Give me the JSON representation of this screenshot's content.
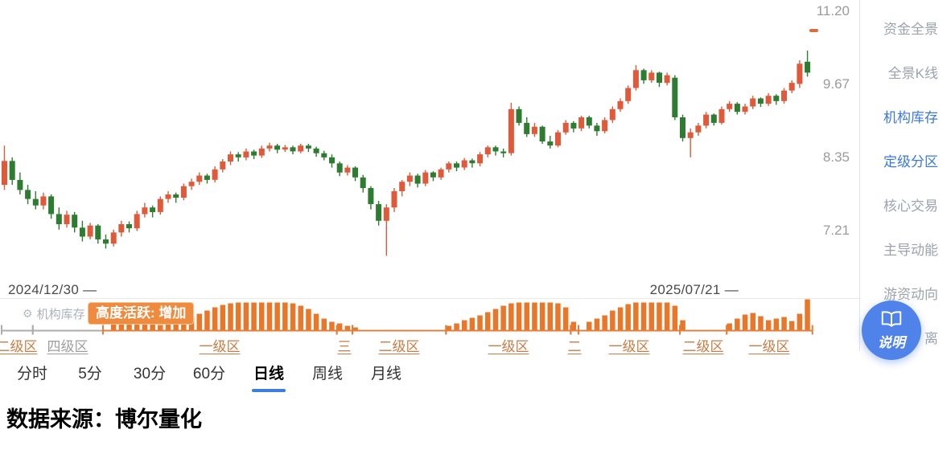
{
  "colors": {
    "up": "#df5a3a",
    "down": "#2e7c31",
    "inventory_bar": "#e8772a",
    "accent_blue": "#3d7ce0",
    "sidebar_active": "#3b78dc",
    "zone_orange_text": "#c97c45",
    "zone_orange_line": "#e0803f",
    "zone_gray_text": "#9e9e9e",
    "zone_gray_line": "#adadad",
    "tooltip_bg": "#ee8b3e",
    "help_button": "#4f83ea"
  },
  "date_range": {
    "start": "2024/12/30 —",
    "end": "2025/07/21 —"
  },
  "inventory_panel": {
    "label": "机构库存",
    "gear_icon": "⚙",
    "tooltip": "高度活跃: 增加"
  },
  "tabs": {
    "items": [
      "分时",
      "5分",
      "30分",
      "60分",
      "日线",
      "周线",
      "月线"
    ],
    "active_index": 4
  },
  "sidebar": {
    "items": [
      {
        "label": "资金全景",
        "active": false
      },
      {
        "label": "全景K线",
        "active": false
      },
      {
        "label": "机构库存",
        "active": true
      },
      {
        "label": "定级分区",
        "active": true
      },
      {
        "label": "核心交易",
        "active": false
      },
      {
        "label": "主导动能",
        "active": false
      },
      {
        "label": "游资动向",
        "active": false
      },
      {
        "label": "离",
        "active": false
      }
    ]
  },
  "help_button": {
    "label": "说明"
  },
  "footer": {
    "source": "数据来源：博尔量化"
  },
  "chart_data": {
    "type": "candlestick",
    "scale": "log",
    "x_range": {
      "start_label": "2024/12/30",
      "end_label": "2025/07/21"
    },
    "y_axis_ticks": [
      "11.20",
      "9.67",
      "8.35",
      "7.21"
    ],
    "grid": false,
    "candles": [
      [
        7.9,
        8.55,
        7.82,
        8.29
      ],
      [
        8.29,
        8.35,
        7.9,
        7.98
      ],
      [
        7.98,
        8.1,
        7.75,
        7.82
      ],
      [
        7.82,
        7.9,
        7.6,
        7.68
      ],
      [
        7.68,
        7.8,
        7.52,
        7.58
      ],
      [
        7.58,
        7.78,
        7.52,
        7.72
      ],
      [
        7.72,
        7.75,
        7.38,
        7.45
      ],
      [
        7.45,
        7.55,
        7.22,
        7.3
      ],
      [
        7.3,
        7.5,
        7.25,
        7.44
      ],
      [
        7.44,
        7.48,
        7.18,
        7.25
      ],
      [
        7.25,
        7.35,
        7.05,
        7.12
      ],
      [
        7.12,
        7.32,
        7.08,
        7.28
      ],
      [
        7.28,
        7.3,
        7.02,
        7.08
      ],
      [
        7.08,
        7.15,
        6.95,
        7.02
      ],
      [
        7.02,
        7.22,
        6.98,
        7.18
      ],
      [
        7.18,
        7.35,
        7.12,
        7.3
      ],
      [
        7.3,
        7.34,
        7.18,
        7.24
      ],
      [
        7.24,
        7.5,
        7.2,
        7.45
      ],
      [
        7.45,
        7.62,
        7.4,
        7.55
      ],
      [
        7.55,
        7.58,
        7.4,
        7.48
      ],
      [
        7.48,
        7.72,
        7.44,
        7.68
      ],
      [
        7.68,
        7.8,
        7.62,
        7.75
      ],
      [
        7.75,
        7.78,
        7.62,
        7.7
      ],
      [
        7.7,
        7.92,
        7.66,
        7.88
      ],
      [
        7.88,
        8.0,
        7.82,
        7.95
      ],
      [
        7.95,
        8.1,
        7.9,
        8.05
      ],
      [
        8.05,
        8.08,
        7.92,
        7.98
      ],
      [
        7.98,
        8.2,
        7.94,
        8.15
      ],
      [
        8.15,
        8.32,
        8.1,
        8.28
      ],
      [
        8.28,
        8.45,
        8.22,
        8.4
      ],
      [
        8.4,
        8.44,
        8.28,
        8.35
      ],
      [
        8.35,
        8.5,
        8.3,
        8.45
      ],
      [
        8.45,
        8.48,
        8.32,
        8.38
      ],
      [
        8.38,
        8.55,
        8.34,
        8.5
      ],
      [
        8.5,
        8.6,
        8.45,
        8.55
      ],
      [
        8.55,
        8.58,
        8.42,
        8.48
      ],
      [
        8.48,
        8.56,
        8.44,
        8.52
      ],
      [
        8.52,
        8.55,
        8.4,
        8.45
      ],
      [
        8.45,
        8.58,
        8.42,
        8.55
      ],
      [
        8.55,
        8.58,
        8.44,
        8.5
      ],
      [
        8.5,
        8.53,
        8.36,
        8.42
      ],
      [
        8.42,
        8.46,
        8.3,
        8.35
      ],
      [
        8.35,
        8.4,
        8.18,
        8.25
      ],
      [
        8.25,
        8.28,
        8.04,
        8.1
      ],
      [
        8.1,
        8.22,
        8.05,
        8.18
      ],
      [
        8.18,
        8.2,
        7.96,
        8.02
      ],
      [
        8.02,
        8.06,
        7.78,
        7.85
      ],
      [
        7.85,
        7.88,
        7.52,
        7.6
      ],
      [
        7.6,
        7.65,
        7.28,
        7.35
      ],
      [
        7.35,
        7.6,
        6.85,
        7.55
      ],
      [
        7.55,
        7.85,
        7.48,
        7.8
      ],
      [
        7.8,
        7.98,
        7.72,
        7.95
      ],
      [
        7.95,
        8.1,
        7.88,
        8.05
      ],
      [
        8.05,
        8.08,
        7.86,
        7.92
      ],
      [
        7.92,
        8.14,
        7.88,
        8.1
      ],
      [
        8.1,
        8.12,
        7.96,
        8.02
      ],
      [
        8.02,
        8.18,
        7.98,
        8.15
      ],
      [
        8.15,
        8.28,
        8.1,
        8.25
      ],
      [
        8.25,
        8.28,
        8.12,
        8.18
      ],
      [
        8.18,
        8.34,
        8.14,
        8.3
      ],
      [
        8.3,
        8.33,
        8.18,
        8.25
      ],
      [
        8.25,
        8.44,
        8.2,
        8.4
      ],
      [
        8.4,
        8.55,
        8.35,
        8.52
      ],
      [
        8.52,
        8.55,
        8.38,
        8.45
      ],
      [
        8.45,
        8.5,
        8.35,
        8.42
      ],
      [
        8.42,
        9.32,
        8.38,
        9.2
      ],
      [
        9.2,
        9.25,
        8.9,
        8.95
      ],
      [
        8.95,
        9.05,
        8.7,
        8.75
      ],
      [
        8.75,
        8.95,
        8.7,
        8.88
      ],
      [
        8.88,
        8.9,
        8.58,
        8.62
      ],
      [
        8.62,
        8.72,
        8.5,
        8.55
      ],
      [
        8.55,
        8.82,
        8.52,
        8.78
      ],
      [
        8.78,
        9.0,
        8.74,
        8.95
      ],
      [
        8.95,
        8.98,
        8.78,
        8.85
      ],
      [
        8.85,
        9.08,
        8.8,
        9.05
      ],
      [
        9.05,
        9.08,
        8.85,
        8.9
      ],
      [
        8.9,
        8.95,
        8.72,
        8.8
      ],
      [
        8.8,
        9.05,
        8.76,
        9.0
      ],
      [
        9.0,
        9.25,
        8.95,
        9.2
      ],
      [
        9.2,
        9.4,
        9.15,
        9.35
      ],
      [
        9.35,
        9.65,
        9.3,
        9.6
      ],
      [
        9.6,
        10.05,
        9.55,
        9.95
      ],
      [
        9.95,
        9.98,
        9.68,
        9.75
      ],
      [
        9.75,
        9.95,
        9.7,
        9.9
      ],
      [
        9.9,
        9.92,
        9.62,
        9.7
      ],
      [
        9.7,
        9.9,
        9.65,
        9.85
      ],
      [
        9.8,
        9.85,
        9.0,
        9.05
      ],
      [
        9.05,
        9.1,
        8.62,
        8.68
      ],
      [
        8.68,
        8.85,
        8.35,
        8.78
      ],
      [
        8.78,
        8.95,
        8.72,
        8.9
      ],
      [
        8.9,
        9.15,
        8.85,
        9.1
      ],
      [
        9.1,
        9.12,
        8.9,
        8.95
      ],
      [
        8.95,
        9.25,
        8.92,
        9.2
      ],
      [
        9.2,
        9.35,
        9.15,
        9.3
      ],
      [
        9.3,
        9.33,
        9.1,
        9.15
      ],
      [
        9.15,
        9.3,
        9.1,
        9.25
      ],
      [
        9.25,
        9.45,
        9.2,
        9.4
      ],
      [
        9.4,
        9.42,
        9.24,
        9.3
      ],
      [
        9.3,
        9.5,
        9.26,
        9.45
      ],
      [
        9.45,
        9.48,
        9.28,
        9.35
      ],
      [
        9.35,
        9.6,
        9.3,
        9.55
      ],
      [
        9.55,
        9.75,
        9.5,
        9.7
      ],
      [
        9.68,
        10.15,
        9.6,
        10.08
      ],
      [
        10.12,
        10.35,
        9.82,
        9.9
      ]
    ],
    "inventory_bars": [
      0,
      0,
      0,
      0,
      0,
      0,
      0,
      0,
      0,
      0,
      0,
      0,
      0,
      0,
      10,
      14,
      18,
      16,
      12,
      8,
      6,
      7,
      9,
      12,
      16,
      20,
      24,
      28,
      31,
      33,
      34,
      34,
      34,
      34,
      34,
      34,
      34,
      33,
      30,
      26,
      20,
      14,
      10,
      8,
      5,
      3,
      0,
      0,
      0,
      0,
      0,
      0,
      0,
      0,
      0,
      0,
      0,
      5,
      8,
      12,
      15,
      18,
      22,
      26,
      30,
      33,
      34,
      34,
      34,
      34,
      34,
      33,
      28,
      10,
      0,
      10,
      14,
      18,
      24,
      28,
      32,
      34,
      34,
      34,
      34,
      34,
      30,
      12,
      0,
      0,
      0,
      0,
      0,
      8,
      14,
      19,
      21,
      17,
      12,
      14,
      16,
      11,
      20,
      38
    ],
    "zones": [
      {
        "label": "二级区",
        "start": 0,
        "end": 4,
        "line": "gray",
        "text": "orange"
      },
      {
        "label": "四级区",
        "start": 4,
        "end": 13,
        "line": "gray",
        "text": "gray"
      },
      {
        "label": "一级区",
        "start": 13,
        "end": 43,
        "line": "orange",
        "text": "orange"
      },
      {
        "label": "三",
        "start": 43,
        "end": 45,
        "line": "orange",
        "text": "orange"
      },
      {
        "label": "二级区",
        "start": 45,
        "end": 57,
        "line": "orange",
        "text": "orange"
      },
      {
        "label": "一级区",
        "start": 57,
        "end": 73,
        "line": "orange",
        "text": "orange"
      },
      {
        "label": "二",
        "start": 73,
        "end": 74,
        "line": "orange",
        "text": "orange"
      },
      {
        "label": "一级区",
        "start": 74,
        "end": 87,
        "line": "orange",
        "text": "orange"
      },
      {
        "label": "二级区",
        "start": 87,
        "end": 93,
        "line": "orange",
        "text": "orange"
      },
      {
        "label": "一级区",
        "start": 93,
        "end": 104,
        "line": "orange",
        "text": "orange"
      }
    ]
  }
}
